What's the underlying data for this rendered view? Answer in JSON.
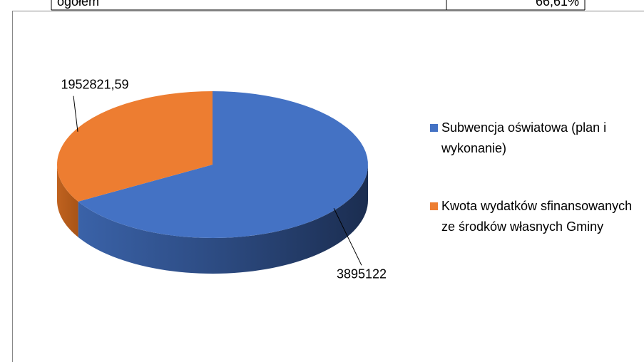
{
  "table": {
    "rows": [
      [
        "ogółem",
        "66,61%"
      ]
    ]
  },
  "chart_data": {
    "type": "pie3d",
    "categories": [
      "Subwencja oświatowa (plan i wykonanie)",
      "Kwota wydatków sfinansowanych ze środków własnych Gminy"
    ],
    "values": [
      3895122,
      1952821.59
    ],
    "value_labels": [
      "3895122",
      "1952821,59"
    ],
    "colors": [
      "#4472c4",
      "#ed7d31"
    ],
    "legend": "right"
  }
}
